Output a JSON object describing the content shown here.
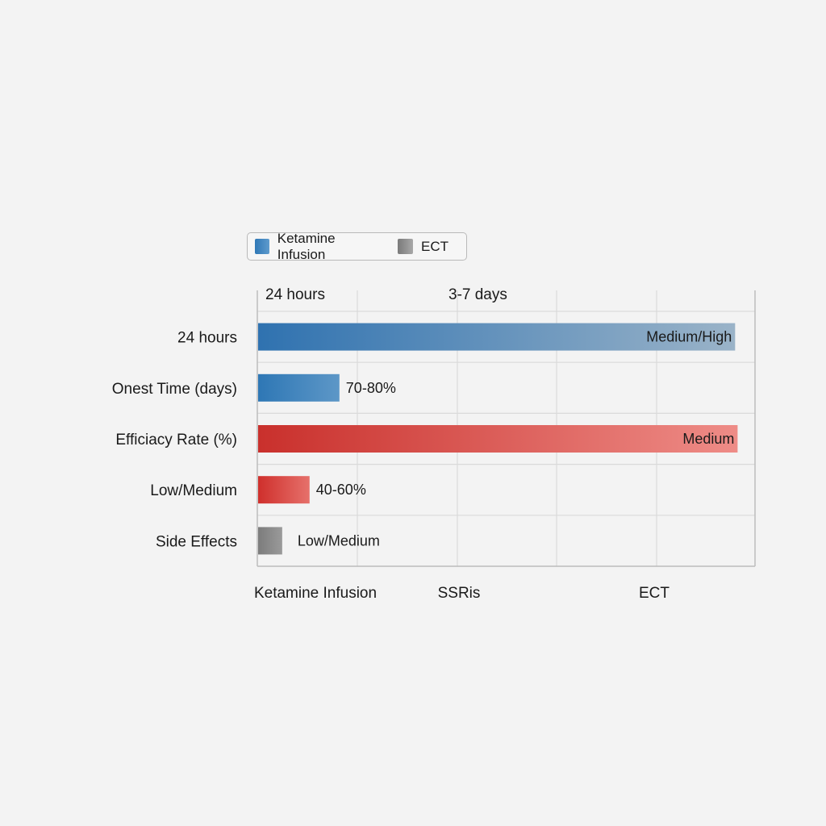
{
  "chart_data": {
    "type": "bar",
    "orientation": "horizontal",
    "title": "",
    "legend": {
      "placement": "top-left",
      "entries": [
        {
          "name": "Ketamine Infusion",
          "color": "#2f78b6"
        },
        {
          "name": "ECT",
          "color": "#8c8c8c"
        }
      ]
    },
    "categories": [
      "24 hours",
      "Onest Time (days)",
      "Efficiacy Rate (%)",
      "Low/Medium",
      "Side Effects"
    ],
    "top_ticks": [
      "24 hours",
      "3-7 days"
    ],
    "bottom_ticks": [
      "Ketamine Infusion",
      "SSRis",
      "ECT"
    ],
    "xlim": [
      0,
      100
    ],
    "grid": true,
    "bars": [
      {
        "category": "24 hours",
        "value": 96,
        "label": "Medium/High",
        "label_inside": true,
        "color_start": "#2f72b0",
        "color_end": "#9ab3c8"
      },
      {
        "category": "Onest Time (days)",
        "value": 16.5,
        "label": "70-80%",
        "label_inside": false,
        "color_start": "#2e77b5",
        "color_end": "#5d97c7"
      },
      {
        "category": "Efficiacy Rate (%)",
        "value": 96.5,
        "label": "Medium",
        "label_inside": true,
        "color_start": "#c9302c",
        "color_end": "#ee8c87"
      },
      {
        "category": "Low/Medium",
        "value": 10.5,
        "label": "40-60%",
        "label_inside": false,
        "color_start": "#cf2f2c",
        "color_end": "#e6716b"
      },
      {
        "category": "Side Effects",
        "value": 5,
        "label": "Low/Medium",
        "label_inside": false,
        "color_start": "#7c7c7c",
        "color_end": "#9a9a9a"
      }
    ]
  }
}
